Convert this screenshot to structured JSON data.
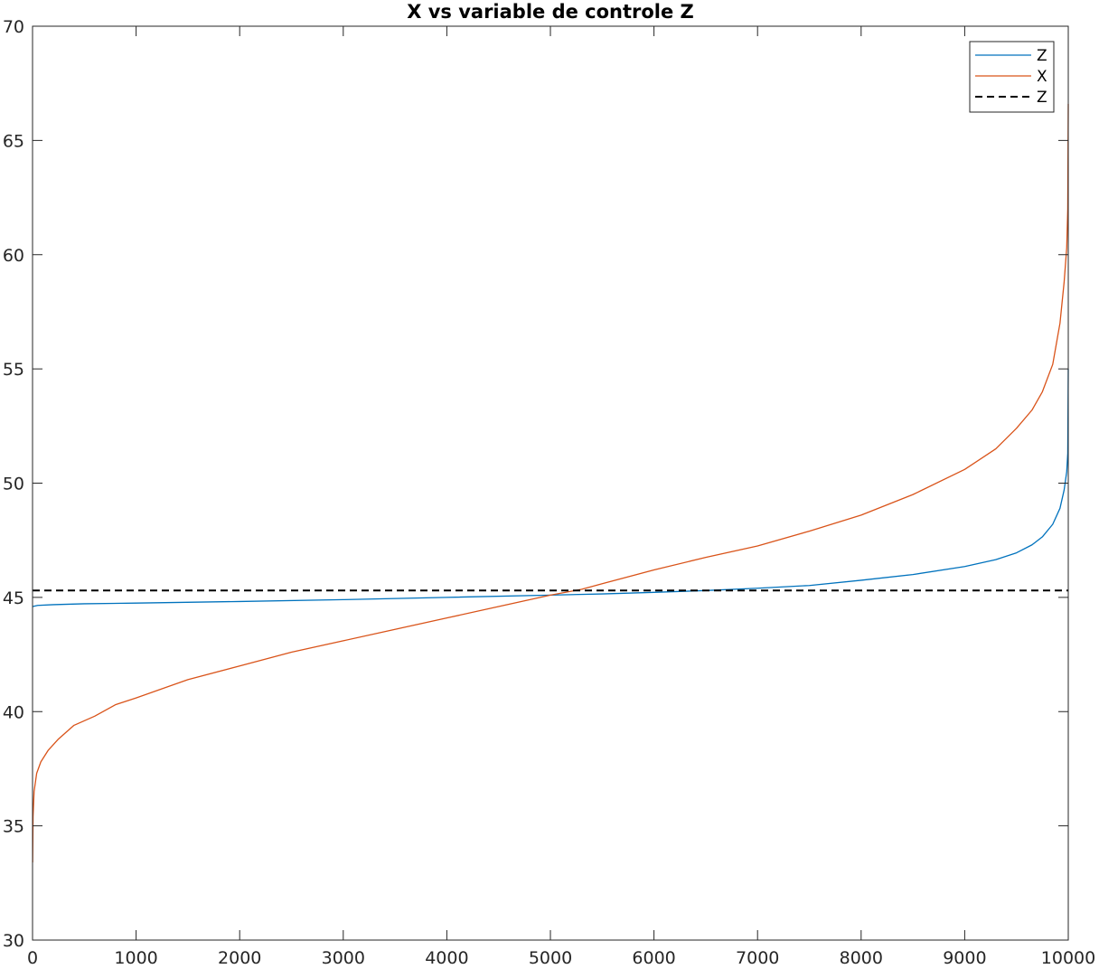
{
  "chart_data": {
    "type": "line",
    "title": "X vs variable de controle Z",
    "xlabel": "",
    "ylabel": "",
    "xlim": [
      0,
      10000
    ],
    "ylim": [
      30,
      70
    ],
    "xticks": [
      0,
      1000,
      2000,
      3000,
      4000,
      5000,
      6000,
      7000,
      8000,
      9000,
      10000
    ],
    "xtick_labels": [
      "0",
      "1000",
      "2000",
      "3000",
      "4000",
      "5000",
      "6000",
      "7000",
      "8000",
      "9000",
      "10000"
    ],
    "yticks": [
      30,
      35,
      40,
      45,
      50,
      55,
      60,
      65,
      70
    ],
    "ytick_labels": [
      "30",
      "35",
      "40",
      "45",
      "50",
      "55",
      "60",
      "65",
      "70"
    ],
    "grid": false,
    "legend_position": "top-right",
    "series": [
      {
        "name": "Z",
        "color": "#0072BD",
        "style": "solid",
        "x": [
          1,
          50,
          200,
          500,
          1000,
          2000,
          3000,
          4000,
          5000,
          5500,
          6000,
          6500,
          7000,
          7500,
          8000,
          8500,
          9000,
          9300,
          9500,
          9650,
          9750,
          9850,
          9920,
          9960,
          9985,
          9995,
          10000
        ],
        "y": [
          44.6,
          44.65,
          44.68,
          44.72,
          44.75,
          44.82,
          44.9,
          45.0,
          45.1,
          45.15,
          45.22,
          45.3,
          45.4,
          45.52,
          45.75,
          46.0,
          46.35,
          46.65,
          46.95,
          47.3,
          47.65,
          48.2,
          48.9,
          49.7,
          50.5,
          51.3,
          55.0
        ]
      },
      {
        "name": "X",
        "color": "#D95319",
        "style": "solid",
        "x": [
          1,
          5,
          15,
          40,
          80,
          150,
          250,
          400,
          600,
          800,
          1000,
          1500,
          2000,
          2500,
          3000,
          3500,
          4000,
          4500,
          5000,
          5300,
          5500,
          6000,
          6500,
          7000,
          7500,
          8000,
          8500,
          9000,
          9300,
          9500,
          9650,
          9750,
          9850,
          9920,
          9960,
          9985,
          9995,
          10000
        ],
        "y": [
          33.4,
          35.4,
          36.5,
          37.3,
          37.8,
          38.3,
          38.8,
          39.4,
          39.8,
          40.3,
          40.6,
          41.4,
          42.0,
          42.6,
          43.1,
          43.6,
          44.1,
          44.6,
          45.1,
          45.35,
          45.6,
          46.2,
          46.75,
          47.25,
          47.9,
          48.6,
          49.5,
          50.6,
          51.5,
          52.4,
          53.2,
          54.0,
          55.2,
          57.0,
          58.8,
          60.3,
          62.0,
          66.6
        ]
      },
      {
        "name": "Z",
        "color": "#000000",
        "style": "dashed",
        "x": [
          0,
          10000
        ],
        "y": [
          45.3,
          45.3
        ]
      }
    ]
  }
}
